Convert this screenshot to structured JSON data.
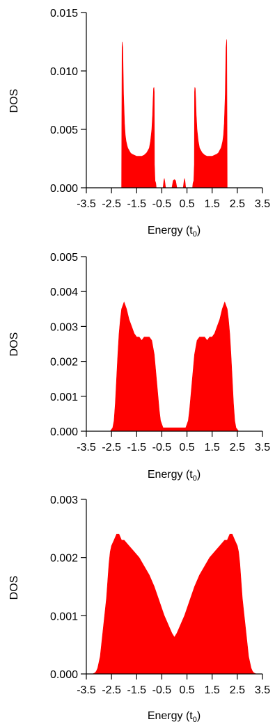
{
  "colors": {
    "fill": "#ff0000",
    "axis": "#000000"
  },
  "chart_data": [
    {
      "type": "area",
      "xlabel": "Energy (t",
      "xlabel_sub": "0",
      "xlabel_close": ")",
      "ylabel": "DOS",
      "xlim": [
        -3.5,
        3.5
      ],
      "ylim": [
        0,
        0.015
      ],
      "xticks": [
        -3.5,
        -2.5,
        -1.5,
        -0.5,
        0.5,
        1.5,
        2.5,
        3.5
      ],
      "xtick_labels": [
        "-3.5",
        "-2.5",
        "-1.5",
        "-0.5",
        "0.5",
        "1.5",
        "2.5",
        "3.5"
      ],
      "yticks": [
        0,
        0.005,
        0.01,
        0.015
      ],
      "ytick_labels": [
        "0.000",
        "0.005",
        "0.010",
        "0.015"
      ],
      "series": [
        {
          "x": [
            -2.1,
            -2.08,
            -2.05,
            -2.02,
            -1.98,
            -1.95,
            -1.92,
            -1.88,
            -1.85,
            -1.8,
            -1.75,
            -1.7,
            -1.6,
            -1.5,
            -1.4,
            -1.3,
            -1.2,
            -1.1,
            -1.0,
            -0.95,
            -0.9,
            -0.87,
            -0.85,
            -0.83,
            -0.81,
            -0.8,
            -0.79,
            -0.77,
            -0.74,
            -0.72,
            -0.6,
            -0.45,
            -0.42,
            -0.4,
            -0.38,
            -0.35,
            -0.1,
            -0.05,
            0,
            0.05,
            0.1,
            0.35,
            0.38,
            0.4,
            0.42,
            0.45,
            0.6,
            0.72,
            0.74,
            0.77,
            0.79,
            0.8,
            0.81,
            0.83,
            0.85,
            0.87,
            0.9,
            0.95,
            1.0,
            1.1,
            1.2,
            1.3,
            1.4,
            1.5,
            1.6,
            1.7,
            1.75,
            1.8,
            1.85,
            1.88,
            1.92,
            1.95,
            1.98,
            2.02,
            2.05,
            2.08,
            2.1
          ],
          "y": [
            0,
            0.0125,
            0.012,
            0.008,
            0.0055,
            0.0045,
            0.004,
            0.0036,
            0.0034,
            0.0032,
            0.003,
            0.0029,
            0.0028,
            0.0027,
            0.0027,
            0.0027,
            0.0028,
            0.003,
            0.0034,
            0.004,
            0.005,
            0.0062,
            0.0075,
            0.0085,
            0.0086,
            0.0082,
            0.002,
            0.0006,
            0.0004,
            0,
            0,
            0,
            0.0006,
            0.0008,
            0.0005,
            0,
            0,
            0.0006,
            0.0007,
            0.0006,
            0,
            0,
            0.0005,
            0.0008,
            0.0006,
            0,
            0,
            0,
            0.0004,
            0.0006,
            0.002,
            0.0082,
            0.0086,
            0.0085,
            0.0075,
            0.0062,
            0.005,
            0.004,
            0.0034,
            0.003,
            0.0028,
            0.0027,
            0.0027,
            0.0027,
            0.0028,
            0.0029,
            0.003,
            0.0032,
            0.0034,
            0.0036,
            0.004,
            0.0045,
            0.0055,
            0.008,
            0.012,
            0.0127,
            0
          ]
        }
      ]
    },
    {
      "type": "area",
      "xlabel": "Energy (t",
      "xlabel_sub": "0",
      "xlabel_close": ")",
      "ylabel": "DOS",
      "xlim": [
        -3.5,
        3.5
      ],
      "ylim": [
        0,
        0.005
      ],
      "xticks": [
        -3.5,
        -2.5,
        -1.5,
        -0.5,
        0.5,
        1.5,
        2.5,
        3.5
      ],
      "xtick_labels": [
        "-3.5",
        "-2.5",
        "-1.5",
        "-0.5",
        "0.5",
        "1.5",
        "2.5",
        "3.5"
      ],
      "yticks": [
        0,
        0.001,
        0.002,
        0.003,
        0.004,
        0.005
      ],
      "ytick_labels": [
        "0.000",
        "0.001",
        "0.002",
        "0.003",
        "0.004",
        "0.005"
      ],
      "series": [
        {
          "x": [
            -2.55,
            -2.45,
            -2.4,
            -2.35,
            -2.3,
            -2.25,
            -2.2,
            -2.15,
            -2.1,
            -2.05,
            -2.0,
            -1.9,
            -1.8,
            -1.7,
            -1.6,
            -1.5,
            -1.4,
            -1.3,
            -1.2,
            -1.1,
            -1.0,
            -0.9,
            -0.85,
            -0.8,
            -0.75,
            -0.7,
            -0.65,
            -0.6,
            -0.55,
            -0.5,
            -0.45,
            -0.4,
            -0.3,
            -0.2,
            -0.1,
            0,
            0.1,
            0.2,
            0.3,
            0.4,
            0.45,
            0.5,
            0.55,
            0.6,
            0.65,
            0.7,
            0.75,
            0.8,
            0.85,
            0.9,
            1.0,
            1.1,
            1.2,
            1.3,
            1.4,
            1.5,
            1.6,
            1.7,
            1.8,
            1.9,
            2.0,
            2.05,
            2.1,
            2.15,
            2.2,
            2.25,
            2.3,
            2.35,
            2.4,
            2.45,
            2.55
          ],
          "y": [
            0,
            0.0001,
            0.0003,
            0.0008,
            0.0015,
            0.0022,
            0.0028,
            0.0032,
            0.0035,
            0.0036,
            0.0037,
            0.0035,
            0.0032,
            0.003,
            0.0028,
            0.0027,
            0.0027,
            0.0026,
            0.0027,
            0.0027,
            0.0027,
            0.0026,
            0.0024,
            0.0022,
            0.0018,
            0.0014,
            0.001,
            0.0006,
            0.0003,
            0.0002,
            0.0001,
            0.0001,
            0.0001,
            0.0001,
            0.0001,
            0.0001,
            0.0001,
            0.0001,
            0.0001,
            0.0001,
            0.0001,
            0.0002,
            0.0003,
            0.0006,
            0.001,
            0.0014,
            0.0018,
            0.0022,
            0.0024,
            0.0026,
            0.0027,
            0.0027,
            0.0027,
            0.0026,
            0.0027,
            0.0027,
            0.0028,
            0.003,
            0.0032,
            0.0035,
            0.0037,
            0.0036,
            0.0035,
            0.0032,
            0.0028,
            0.0022,
            0.0015,
            0.0008,
            0.0003,
            0.0001,
            0
          ]
        }
      ]
    },
    {
      "type": "area",
      "xlabel": "Energy (t",
      "xlabel_sub": "0",
      "xlabel_close": ")",
      "ylabel": "DOS",
      "xlim": [
        -3.5,
        3.5
      ],
      "ylim": [
        0,
        0.003
      ],
      "xticks": [
        -3.5,
        -2.5,
        -1.5,
        -0.5,
        0.5,
        1.5,
        2.5,
        3.5
      ],
      "xtick_labels": [
        "-3.5",
        "-2.5",
        "-1.5",
        "-0.5",
        "0.5",
        "1.5",
        "2.5",
        "3.5"
      ],
      "yticks": [
        0,
        0.001,
        0.002,
        0.003
      ],
      "ytick_labels": [
        "0.000",
        "0.001",
        "0.002",
        "0.003"
      ],
      "series": [
        {
          "x": [
            -3.25,
            -3.15,
            -3.1,
            -3.05,
            -3.0,
            -2.95,
            -2.9,
            -2.85,
            -2.8,
            -2.75,
            -2.7,
            -2.65,
            -2.6,
            -2.55,
            -2.5,
            -2.4,
            -2.3,
            -2.2,
            -2.1,
            -2.0,
            -1.8,
            -1.6,
            -1.4,
            -1.2,
            -1.0,
            -0.8,
            -0.6,
            -0.4,
            -0.3,
            -0.2,
            -0.1,
            0,
            0.1,
            0.2,
            0.3,
            0.4,
            0.6,
            0.8,
            1.0,
            1.2,
            1.4,
            1.6,
            1.8,
            2.0,
            2.1,
            2.2,
            2.3,
            2.4,
            2.5,
            2.55,
            2.6,
            2.65,
            2.7,
            2.75,
            2.8,
            2.85,
            2.9,
            2.95,
            3.0,
            3.05,
            3.1,
            3.15,
            3.25
          ],
          "y": [
            0,
            2e-05,
            5e-05,
            0.0001,
            0.0002,
            0.0003,
            0.0005,
            0.0007,
            0.0009,
            0.0011,
            0.0013,
            0.0016,
            0.0019,
            0.0021,
            0.0022,
            0.0023,
            0.0024,
            0.0024,
            0.0023,
            0.0023,
            0.0022,
            0.0021,
            0.002,
            0.00185,
            0.0017,
            0.0015,
            0.00125,
            0.001,
            0.0009,
            0.0008,
            0.0007,
            0.00063,
            0.0007,
            0.0008,
            0.0009,
            0.001,
            0.00125,
            0.0015,
            0.0017,
            0.00185,
            0.002,
            0.0021,
            0.0022,
            0.0023,
            0.0023,
            0.0024,
            0.0024,
            0.0023,
            0.0022,
            0.0021,
            0.0019,
            0.0016,
            0.0013,
            0.0011,
            0.0009,
            0.0007,
            0.0005,
            0.0003,
            0.0002,
            0.0001,
            5e-05,
            2e-05,
            0
          ]
        }
      ]
    }
  ]
}
